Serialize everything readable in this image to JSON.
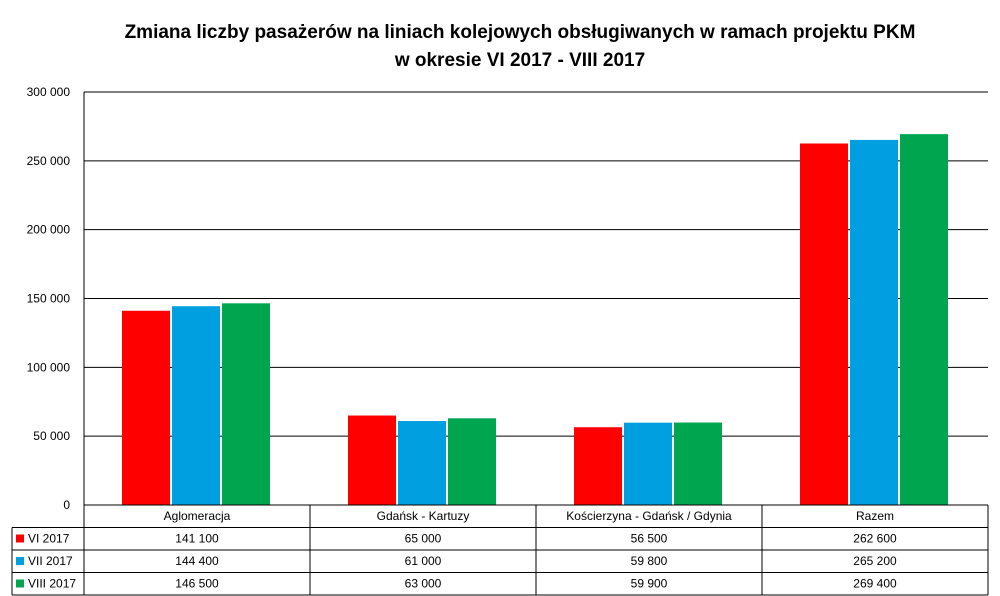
{
  "chart_data": {
    "type": "bar",
    "title_line1": "Zmiana liczby pasażerów na liniach kolejowych obsługiwanych w ramach projektu PKM",
    "title_line2": "w okresie  VI 2017 - VIII 2017",
    "categories": [
      "Aglomeracja",
      "Gdańsk - Kartuzy",
      "Kościerzyna - Gdańsk / Gdynia",
      "Razem"
    ],
    "series": [
      {
        "name": "VI 2017",
        "color": "#ff0000",
        "values": [
          141100,
          65000,
          56500,
          262600
        ],
        "labels": [
          "141 100",
          "65 000",
          "56 500",
          "262 600"
        ]
      },
      {
        "name": "VII 2017",
        "color": "#00a0e0",
        "values": [
          144400,
          61000,
          59800,
          265200
        ],
        "labels": [
          "144 400",
          "61 000",
          "59 800",
          "265 200"
        ]
      },
      {
        "name": "VIII 2017",
        "color": "#00a550",
        "values": [
          146500,
          63000,
          59900,
          269400
        ],
        "labels": [
          "146 500",
          "63 000",
          "59 900",
          "269 400"
        ]
      }
    ],
    "ylim": [
      0,
      300000
    ],
    "yticks": [
      0,
      50000,
      100000,
      150000,
      200000,
      250000,
      300000
    ],
    "ytick_labels": [
      "0",
      "50 000",
      "100 000",
      "150 000",
      "200 000",
      "250 000",
      "300 000"
    ],
    "grid": "horizontal",
    "legend": "data-table"
  }
}
